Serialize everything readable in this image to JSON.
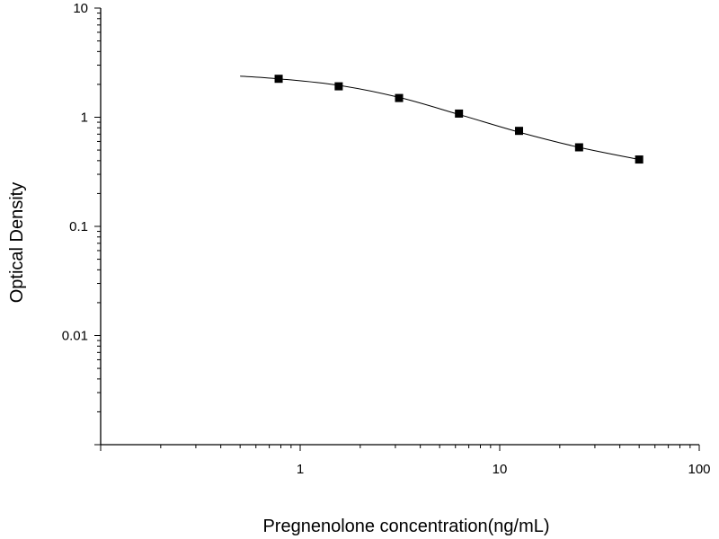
{
  "chart_data": {
    "type": "scatter",
    "title": "",
    "xlabel": "Pregnenolone concentration(ng/mL)",
    "ylabel": "Optical Density",
    "x_scale": "log",
    "y_scale": "log",
    "xlim": [
      0.1,
      100
    ],
    "ylim": [
      0.001,
      10
    ],
    "x_ticks": [
      {
        "value": 1,
        "label": "1"
      },
      {
        "value": 10,
        "label": "10"
      },
      {
        "value": 100,
        "label": "100"
      }
    ],
    "y_ticks": [
      {
        "value": 10,
        "label": "10"
      },
      {
        "value": 1,
        "label": "1"
      },
      {
        "value": 0.1,
        "label": "0.1"
      },
      {
        "value": 0.01,
        "label": "0.01"
      }
    ],
    "grid": false,
    "legend": "none",
    "series": [
      {
        "x": [
          0.78,
          1.56,
          3.13,
          6.25,
          12.5,
          25,
          50
        ],
        "y": [
          2.25,
          1.92,
          1.5,
          1.08,
          0.75,
          0.53,
          0.41
        ],
        "marker": "square",
        "color": "#000000"
      }
    ],
    "fit_curve": {
      "x": [
        0.5,
        0.78,
        1.56,
        3.13,
        6.25,
        12.5,
        25,
        50
      ],
      "y": [
        2.38,
        2.25,
        1.96,
        1.52,
        1.06,
        0.73,
        0.53,
        0.41
      ],
      "color": "#000000"
    }
  }
}
